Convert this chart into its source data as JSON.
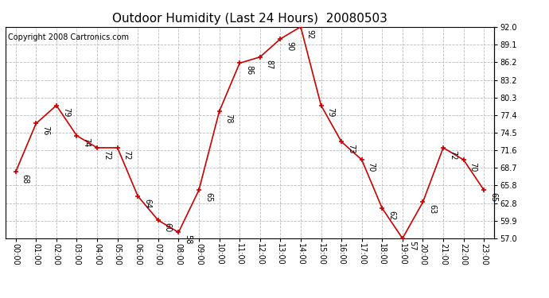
{
  "title": "Outdoor Humidity (Last 24 Hours)  20080503",
  "copyright": "Copyright 2008 Cartronics.com",
  "x_labels": [
    "00:00",
    "01:00",
    "02:00",
    "03:00",
    "04:00",
    "05:00",
    "06:00",
    "07:00",
    "08:00",
    "09:00",
    "10:00",
    "11:00",
    "12:00",
    "13:00",
    "14:00",
    "15:00",
    "16:00",
    "17:00",
    "18:00",
    "19:00",
    "20:00",
    "21:00",
    "22:00",
    "23:00"
  ],
  "x_values": [
    0,
    1,
    2,
    3,
    4,
    5,
    6,
    7,
    8,
    9,
    10,
    11,
    12,
    13,
    14,
    15,
    16,
    17,
    18,
    19,
    20,
    21,
    22,
    23
  ],
  "y_values": [
    68,
    76,
    79,
    74,
    72,
    72,
    64,
    60,
    58,
    65,
    78,
    86,
    87,
    90,
    92,
    79,
    73,
    70,
    62,
    57,
    63,
    72,
    70,
    65
  ],
  "y_right_ticks": [
    57.0,
    59.9,
    62.8,
    65.8,
    68.7,
    71.6,
    74.5,
    77.4,
    80.3,
    83.2,
    86.2,
    89.1,
    92.0
  ],
  "y_labels_right": [
    "57.0",
    "59.9",
    "62.8",
    "65.8",
    "68.7",
    "71.6",
    "74.5",
    "77.4",
    "80.3",
    "83.2",
    "86.2",
    "89.1",
    "92.0"
  ],
  "ylim": [
    57.0,
    92.0
  ],
  "line_color": "#cc0000",
  "marker_color": "#cc0000",
  "bg_color": "#ffffff",
  "grid_color": "#bbbbbb",
  "title_fontsize": 11,
  "copyright_fontsize": 7,
  "annotation_fontsize": 7,
  "tick_fontsize": 7
}
